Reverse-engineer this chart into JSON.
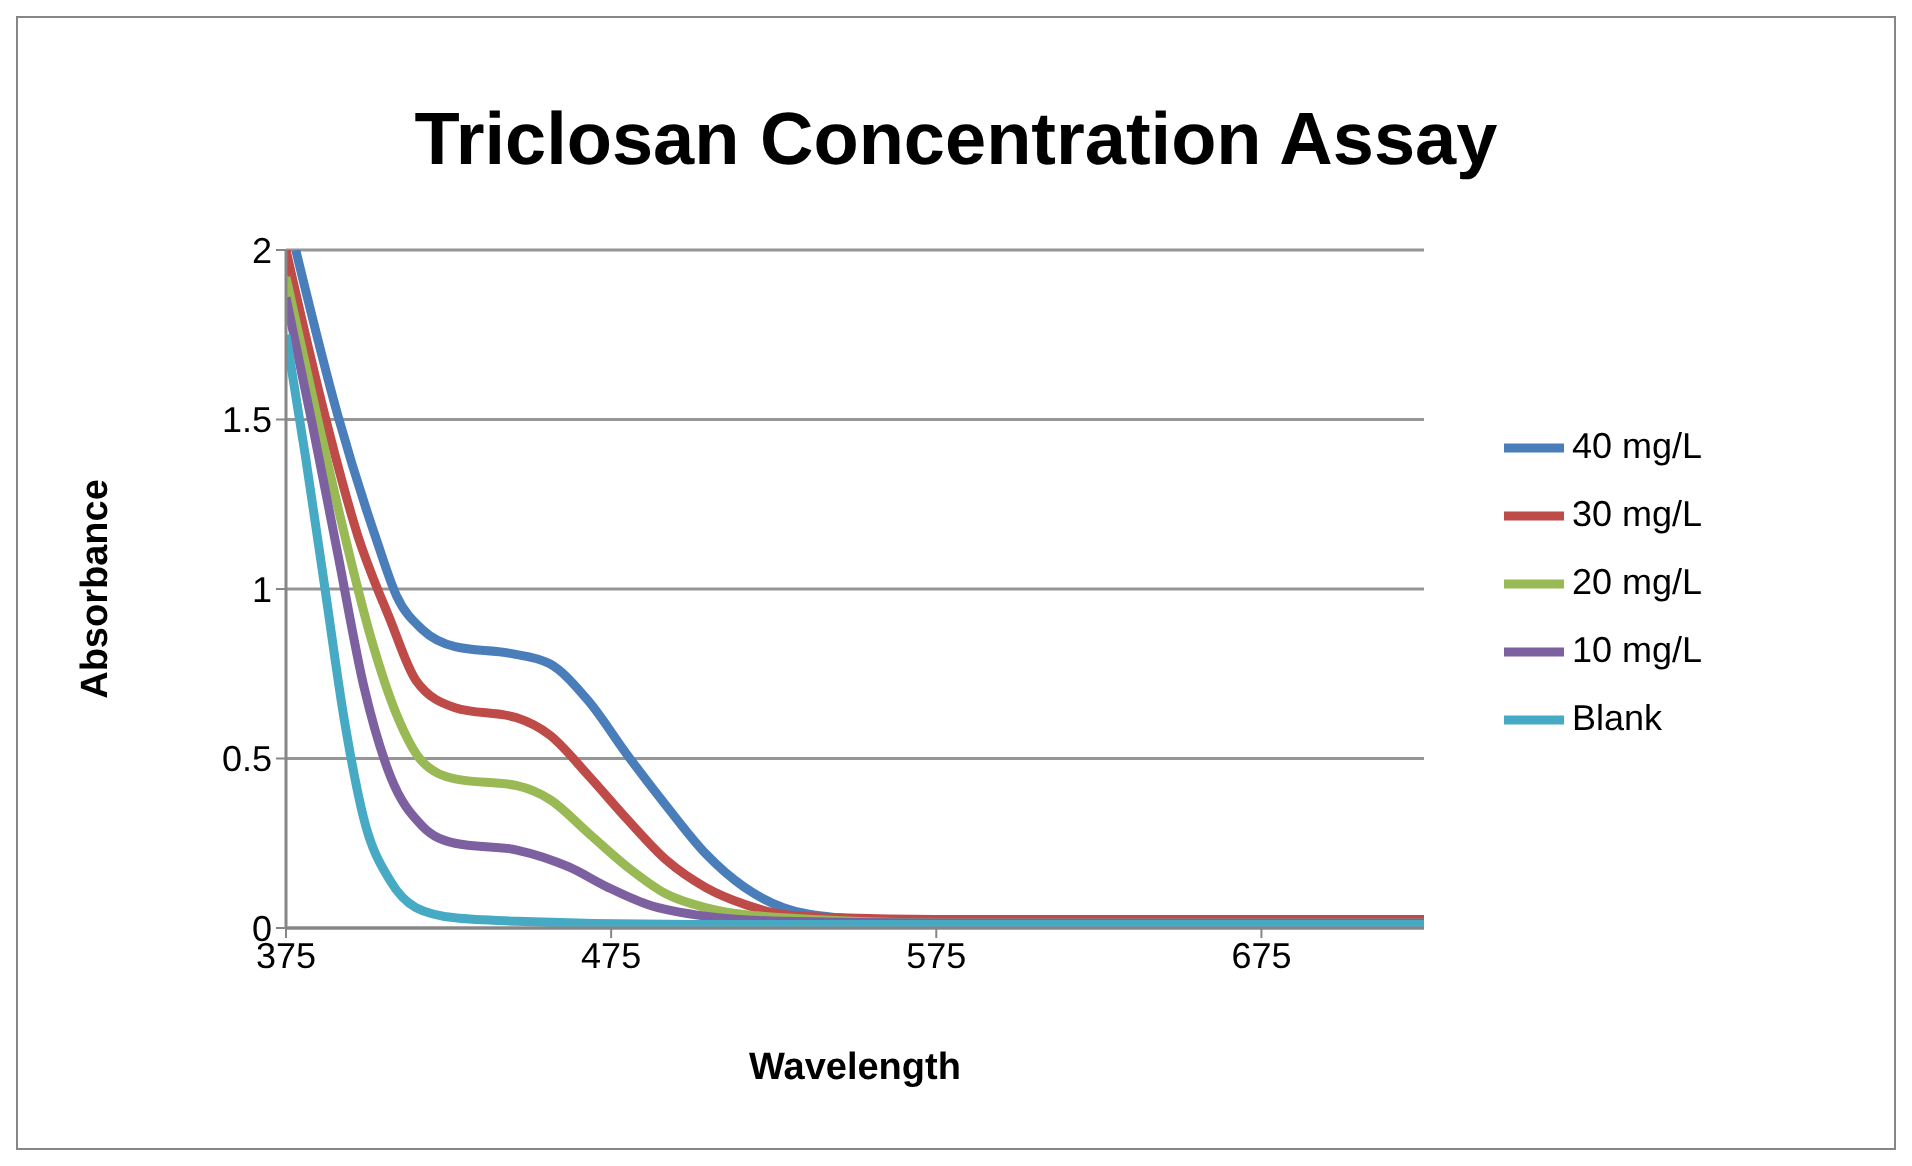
{
  "chart_data": {
    "type": "line",
    "title": "Triclosan Concentration Assay",
    "xlabel": "Wavelength",
    "ylabel": "Absorbance",
    "xlim": [
      375,
      725
    ],
    "ylim": [
      0,
      2
    ],
    "xticks": [
      375,
      475,
      575,
      675
    ],
    "yticks": [
      0,
      0.5,
      1,
      1.5,
      2
    ],
    "grid": "y",
    "legend": "right",
    "marker": "none",
    "line_style": "solid",
    "series": [
      {
        "name": "40 mg/L",
        "color": "#4a7ebb",
        "x": [
          378,
          391,
          403,
          409,
          417,
          427,
          444,
          456,
          468,
          480,
          492,
          504,
          516,
          528,
          545,
          575,
          650,
          725
        ],
        "values": [
          2,
          1.51,
          1.14,
          0.98,
          0.88,
          0.83,
          0.81,
          0.78,
          0.67,
          0.51,
          0.36,
          0.22,
          0.12,
          0.06,
          0.03,
          0.015,
          0.015,
          0.015
        ]
      },
      {
        "name": "30 mg/L",
        "color": "#be4b48",
        "x": [
          375,
          387,
          397,
          407,
          415,
          427,
          446,
          456,
          468,
          480,
          492,
          504,
          516,
          528,
          545,
          575,
          650,
          725
        ],
        "values": [
          2,
          1.51,
          1.16,
          0.91,
          0.73,
          0.65,
          0.62,
          0.57,
          0.45,
          0.32,
          0.2,
          0.12,
          0.07,
          0.04,
          0.03,
          0.025,
          0.025,
          0.025
        ]
      },
      {
        "name": "20 mg/L",
        "color": "#98b954",
        "x": [
          375,
          385,
          393,
          401,
          409,
          417,
          427,
          446,
          456,
          468,
          480,
          492,
          504,
          528,
          575,
          650,
          725
        ],
        "values": [
          1.92,
          1.49,
          1.16,
          0.86,
          0.63,
          0.49,
          0.44,
          0.42,
          0.38,
          0.28,
          0.18,
          0.1,
          0.06,
          0.03,
          0.015,
          0.015,
          0.015
        ]
      },
      {
        "name": "10 mg/L",
        "color": "#7d60a0",
        "x": [
          375,
          383,
          391,
          399,
          407,
          417,
          427,
          446,
          462,
          474,
          486,
          504,
          528,
          575,
          650,
          725
        ],
        "values": [
          1.86,
          1.49,
          1.1,
          0.71,
          0.45,
          0.3,
          0.25,
          0.23,
          0.18,
          0.12,
          0.07,
          0.035,
          0.02,
          0.015,
          0.015,
          0.015
        ]
      },
      {
        "name": "Blank",
        "color": "#46aac5",
        "x": [
          375,
          381,
          387,
          393,
          399,
          407,
          415,
          427,
          446,
          500,
          600,
          725
        ],
        "values": [
          1.75,
          1.39,
          1,
          0.61,
          0.32,
          0.14,
          0.06,
          0.03,
          0.02,
          0.01,
          0.01,
          0.01
        ]
      }
    ]
  }
}
